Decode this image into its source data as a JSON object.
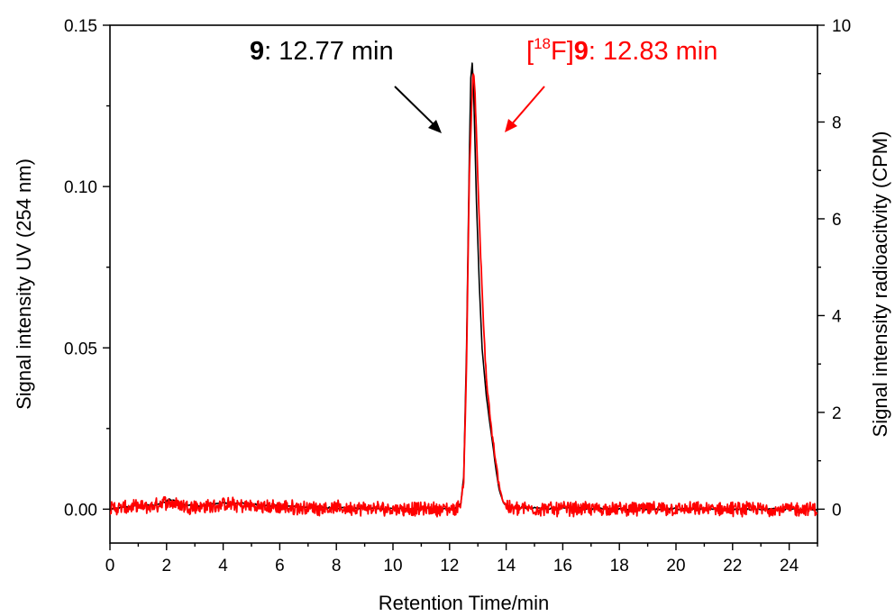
{
  "chart_data": {
    "type": "line",
    "xlabel": "Retention Time/min",
    "ylabel_left": "Signal intensity UV (254 nm)",
    "ylabel_right": "Signal intensity radioacitvity (CPM)",
    "xlim": [
      0,
      25
    ],
    "ylim_left": [
      -0.0105,
      0.15
    ],
    "ylim_right": [
      -0.7,
      10
    ],
    "x_ticks": [
      "0",
      "2",
      "4",
      "6",
      "8",
      "10",
      "12",
      "14",
      "16",
      "18",
      "20",
      "22",
      "24"
    ],
    "y_left_ticks": [
      "0.00",
      "0.05",
      "0.10",
      "0.15"
    ],
    "y_right_ticks": [
      "0",
      "2",
      "4",
      "6",
      "8",
      "10"
    ],
    "grid": false,
    "series": [
      {
        "axis": "left",
        "color": "#000000",
        "x": [
          0,
          0.5,
          1.0,
          1.5,
          1.9,
          2.1,
          2.3,
          2.6,
          3.0,
          3.5,
          4.0,
          4.5,
          5.0,
          5.5,
          6.0,
          7.0,
          8.0,
          9.0,
          10.0,
          11.0,
          11.8,
          12.2,
          12.4,
          12.5,
          12.6,
          12.7,
          12.77,
          12.85,
          12.95,
          13.05,
          13.15,
          13.3,
          13.45,
          13.6,
          13.75,
          13.9,
          14.1,
          14.5,
          15.0,
          16.0,
          17.0,
          18.0,
          19.0,
          20.0,
          21.0,
          22.0,
          23.0,
          24.0,
          25.0
        ],
        "values": [
          0.0,
          0.0005,
          0.001,
          0.0012,
          0.002,
          0.003,
          0.0025,
          0.0015,
          0.001,
          0.0015,
          0.002,
          0.0018,
          0.0015,
          0.0012,
          0.001,
          0.0006,
          0.0004,
          0.0003,
          0.0002,
          0.0001,
          0.0,
          0.0002,
          0.002,
          0.01,
          0.05,
          0.11,
          0.143,
          0.13,
          0.095,
          0.07,
          0.05,
          0.035,
          0.025,
          0.015,
          0.006,
          0.002,
          0.0008,
          0.0005,
          0.0003,
          0.0002,
          0.0002,
          0.0001,
          0.0001,
          0.0001,
          0.0001,
          0.0,
          0.0,
          0.0,
          0.0
        ]
      },
      {
        "axis": "right",
        "color": "#ff0000",
        "noisy": true,
        "noise_amplitude": 0.13,
        "x": [
          0,
          1.5,
          2.0,
          2.3,
          2.7,
          3.5,
          4.0,
          5.0,
          6.0,
          8.0,
          10.0,
          11.8,
          12.2,
          12.4,
          12.5,
          12.6,
          12.7,
          12.83,
          12.9,
          13.0,
          13.1,
          13.2,
          13.3,
          13.45,
          13.6,
          13.75,
          13.9,
          14.1,
          15.0,
          20.0,
          25.0
        ],
        "values": [
          0.02,
          0.05,
          0.15,
          0.12,
          0.06,
          0.05,
          0.1,
          0.06,
          0.04,
          0.02,
          0.01,
          0.0,
          0.0,
          0.1,
          0.6,
          3.0,
          7.0,
          9.1,
          8.6,
          6.8,
          5.2,
          3.8,
          2.7,
          1.8,
          1.1,
          0.5,
          0.15,
          0.02,
          0.01,
          0.0,
          0.0
        ]
      }
    ],
    "annotations": [
      {
        "compound": "9",
        "text": ": 12.77 min",
        "color": "#000000"
      },
      {
        "prefix": "[",
        "superscript": "18",
        "element": "F]",
        "compound": "9",
        "text": ": 12.83 min",
        "color": "#ff0000"
      }
    ]
  }
}
